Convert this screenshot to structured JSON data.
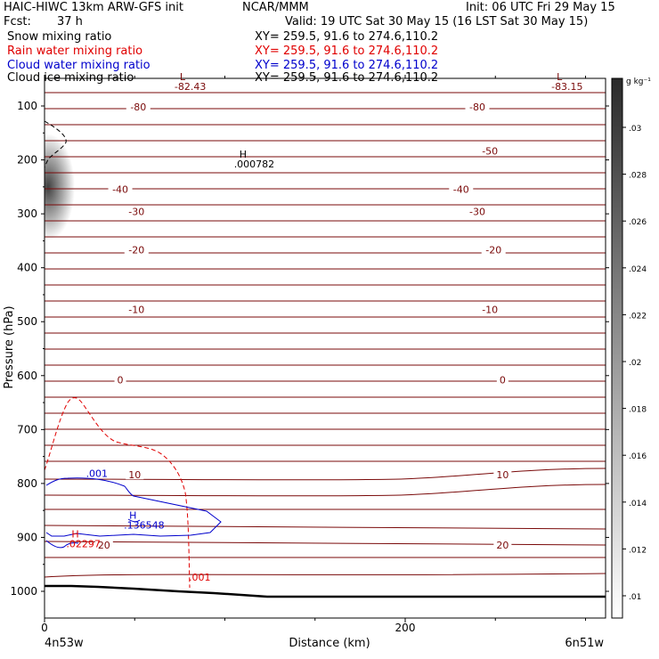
{
  "header": {
    "model": "HAIC-HIWC 13km ARW-GFS init",
    "center": "NCAR/MMM",
    "init": "Init: 06 UTC Fri 29 May 15",
    "fcst_label": "Fcst:",
    "fcst_value": "37 h",
    "valid": "Valid: 19 UTC Sat 30 May 15 (16 LST Sat 30 May 15)"
  },
  "fields": [
    {
      "name": "Snow mixing ratio",
      "xy": "XY= 259.5, 91.6 to 274.6,110.2",
      "color": "#000000"
    },
    {
      "name": "Rain water mixing ratio",
      "xy": "XY= 259.5, 91.6 to 274.6,110.2",
      "color": "#e00000"
    },
    {
      "name": "Cloud water mixing ratio",
      "xy": "XY= 259.5, 91.6 to 274.6,110.2",
      "color": "#0000cc"
    },
    {
      "name": "Cloud ice mixing ratio",
      "xy": "XY= 259.5, 91.6 to 274.6,110.2",
      "color": "#000000"
    }
  ],
  "chart_data": {
    "type": "contour",
    "xlabel": "Distance (km)",
    "ylabel": "Pressure (hPa)",
    "xlim": [
      0,
      300
    ],
    "ylim": [
      1050,
      50
    ],
    "x_ticks": [
      0,
      200
    ],
    "y_ticks": [
      100,
      200,
      300,
      400,
      500,
      600,
      700,
      800,
      900,
      1000
    ],
    "x_end_labels": [
      "4n53w",
      "6n51w"
    ],
    "temperature_labels": [
      {
        "label": "-80",
        "x": 52,
        "p": 102
      },
      {
        "label": "-80",
        "x": 240,
        "p": 102
      },
      {
        "label": "-50",
        "x": 247,
        "p": 183
      },
      {
        "label": "-40",
        "x": 42,
        "p": 254
      },
      {
        "label": "-40",
        "x": 231,
        "p": 254
      },
      {
        "label": "-30",
        "x": 51,
        "p": 296
      },
      {
        "label": "-30",
        "x": 240,
        "p": 296
      },
      {
        "label": "-20",
        "x": 51,
        "p": 367
      },
      {
        "label": "-20",
        "x": 249,
        "p": 367
      },
      {
        "label": "-10",
        "x": 51,
        "p": 477
      },
      {
        "label": "-10",
        "x": 247,
        "p": 477
      },
      {
        "label": "0",
        "x": 42,
        "p": 608
      },
      {
        "label": "0",
        "x": 254,
        "p": 608
      },
      {
        "label": "10",
        "x": 50,
        "p": 784
      },
      {
        "label": "10",
        "x": 254,
        "p": 784
      },
      {
        "label": "20",
        "x": 33,
        "p": 914
      },
      {
        "label": "20",
        "x": 254,
        "p": 914
      }
    ],
    "extrema": [
      {
        "type": "L",
        "value": "-82.43",
        "x": 75,
        "p": 52,
        "field": "temperature"
      },
      {
        "type": "L",
        "value": "-83.15",
        "x": 284,
        "p": 52,
        "field": "temperature"
      },
      {
        "type": "H",
        "value": ".000782",
        "x": 108,
        "p": 196,
        "field": "cloud ice"
      },
      {
        "type": "H",
        "value": ".136548",
        "x": 47,
        "p": 865,
        "field": "cloud water"
      },
      {
        "type": "H",
        "value": ".02297",
        "x": 15,
        "p": 900,
        "field": "rain water"
      }
    ],
    "contour_labels": [
      {
        "text": ".001",
        "x": 23,
        "p": 788,
        "field": "cloud water"
      },
      {
        "text": ".001",
        "x": 80,
        "p": 980,
        "field": "rain water"
      }
    ],
    "colorbar": {
      "unit_text": "g kg⁻¹",
      "ticks": [
        ".03",
        ".028",
        ".026",
        ".024",
        ".022",
        ".02",
        ".018",
        ".016",
        ".014",
        ".012",
        ".01"
      ]
    }
  }
}
